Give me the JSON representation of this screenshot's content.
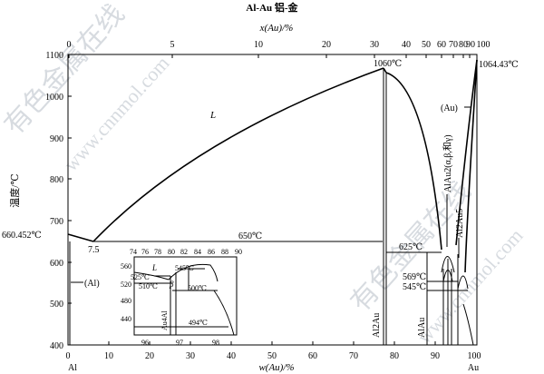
{
  "title": "Al-Au   铝-金",
  "top_axis": {
    "label": "x(Au)/%",
    "ticks": [
      "0",
      "5",
      "10",
      "20",
      "30",
      "40",
      "50",
      "60",
      "70",
      "80",
      "90",
      "100"
    ]
  },
  "bottom_axis": {
    "label": "w(Au)/%",
    "ticks": [
      "0",
      "10",
      "20",
      "30",
      "40",
      "50",
      "60",
      "70",
      "80",
      "90",
      "100"
    ],
    "left_element": "Al",
    "right_element": "Au"
  },
  "left_axis": {
    "label": "温度/℃",
    "ticks": [
      "400",
      "500",
      "600",
      "700",
      "800",
      "900",
      "1000",
      "1100"
    ]
  },
  "annotations": {
    "al_melt": "660.452℃",
    "eutectic_x": "7.5",
    "eutectic_t": "650℃",
    "liquid": "L",
    "alau2_melt": "1060℃",
    "au_melt": "1064.43℃",
    "t625": "625℃",
    "t569": "569℃",
    "t545": "545℃",
    "al_phase": "(Al)",
    "au_phase": "(Au)",
    "al2au": "Al2Au",
    "alau": "AlAu",
    "alau2": "AlAu2(α,β,和γ)",
    "al2au5": "Al2Au5"
  },
  "inset": {
    "top_ticks": [
      "74",
      "76",
      "78",
      "80",
      "82",
      "84",
      "86",
      "88",
      "90"
    ],
    "bottom_ticks": [
      "96",
      "97",
      "98"
    ],
    "left_ticks": [
      "560",
      "520",
      "480",
      "440"
    ],
    "t525": "525℃",
    "t545": "545℃",
    "t510": "510℃",
    "t500": "500℃",
    "t494": "494℃",
    "liquid": "L",
    "beta": "β",
    "phase": "Au4Al"
  },
  "watermark": {
    "main": "有色金属在线",
    "site": "www.cnnmol.com"
  }
}
